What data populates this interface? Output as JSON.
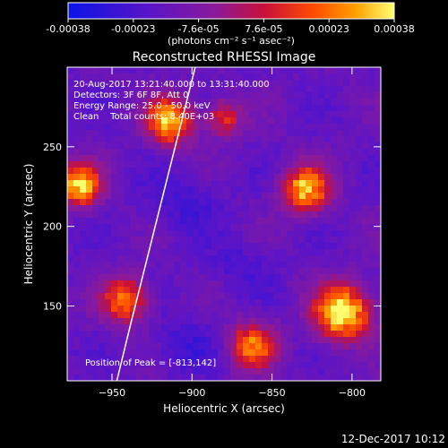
{
  "colorbar": {
    "ticks": [
      "-0.00038",
      "-0.00023",
      "-7.6e-05",
      "7.6e-05",
      "0.00023",
      "0.00038"
    ],
    "units": "(photons cm⁻² s⁻¹ asec⁻²)",
    "range": [
      -0.00038,
      0.00038
    ],
    "colors": [
      "#0a14e6",
      "#5a14c8",
      "#8a1a9a",
      "#c8103a",
      "#ff4a00",
      "#ffa000",
      "#ffff70"
    ]
  },
  "chart_data": {
    "type": "heatmap",
    "title": "Reconstructed RHESSI Image",
    "xlabel": "Heliocentric X (arcsec)",
    "ylabel": "Heliocentric Y (arcsec)",
    "xlim": [
      -978,
      -782
    ],
    "ylim": [
      103,
      300
    ],
    "xticks": [
      -950,
      -900,
      -850,
      -800
    ],
    "yticks": [
      150,
      200,
      250
    ],
    "x_tick_labels": [
      "−950",
      "−900",
      "−850",
      "−800"
    ],
    "y_tick_labels": [
      "150",
      "200",
      "250"
    ],
    "grid": false,
    "limb_curve": [
      [
        -947,
        103
      ],
      [
        -938,
        140
      ],
      [
        -928,
        180
      ],
      [
        -918,
        220
      ],
      [
        -908,
        260
      ],
      [
        -898,
        300
      ]
    ],
    "sources": [
      {
        "x": -806,
        "y": 146,
        "sigma": 12,
        "amp": 1.0
      },
      {
        "x": -829,
        "y": 223,
        "sigma": 10,
        "amp": 0.85
      },
      {
        "x": -914,
        "y": 266,
        "sigma": 10,
        "amp": 0.85
      },
      {
        "x": -970,
        "y": 226,
        "sigma": 9,
        "amp": 0.9
      },
      {
        "x": -942,
        "y": 154,
        "sigma": 10,
        "amp": 0.7
      },
      {
        "x": -862,
        "y": 125,
        "sigma": 10,
        "amp": 0.7
      },
      {
        "x": -880,
        "y": 268,
        "sigma": 8,
        "amp": 0.5
      }
    ],
    "annotations": {
      "time": "20-Aug-2017 13:21:40.000 to 13:31:40.000",
      "detectors": "Detectors: 3F 6F 8F, Att 0",
      "energy": "Energy Range: 25.0 - 50.0 keV",
      "clean": "Clean    Total counts: 8.40E+03",
      "peak": "Position of Peak = [-813,142]"
    }
  },
  "footer": {
    "timestamp": "12-Dec-2017 10:12"
  }
}
